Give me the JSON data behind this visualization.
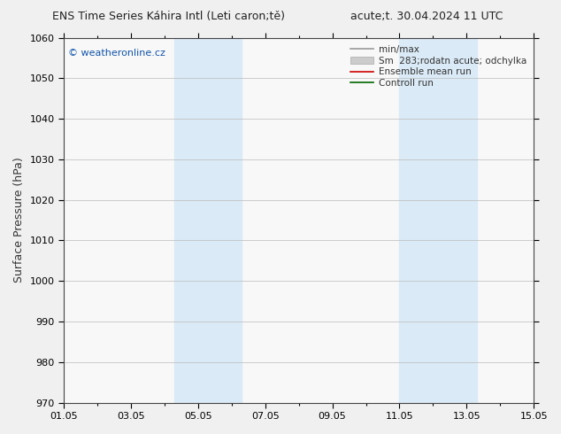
{
  "title_left": "ENS Time Series Káhira Intl (Leti caron;tě)",
  "title_right": "acute;t. 30.04.2024 11 UTC",
  "ylabel": "Surface Pressure (hPa)",
  "ylim": [
    970,
    1060
  ],
  "yticks": [
    970,
    980,
    990,
    1000,
    1010,
    1020,
    1030,
    1040,
    1050,
    1060
  ],
  "xlim_start": 0,
  "xlim_end": 14,
  "xtick_labels": [
    "01.05",
    "03.05",
    "05.05",
    "07.05",
    "09.05",
    "11.05",
    "13.05",
    "15.05"
  ],
  "xtick_positions": [
    0,
    2,
    4,
    6,
    8,
    10,
    12,
    14
  ],
  "shaded_regions": [
    {
      "xmin": 3.3,
      "xmax": 4.0,
      "color": "#daeaf6"
    },
    {
      "xmin": 4.0,
      "xmax": 5.3,
      "color": "#daeaf6"
    },
    {
      "xmin": 10.0,
      "xmax": 10.7,
      "color": "#daeaf6"
    },
    {
      "xmin": 10.7,
      "xmax": 12.3,
      "color": "#daeaf6"
    }
  ],
  "watermark": "© weatheronline.cz",
  "legend_entries": [
    {
      "label": "min/max",
      "color": "#999999",
      "lw": 1.2,
      "type": "line"
    },
    {
      "label": "Sm  283;rodatn acute; odchylka",
      "color": "#cccccc",
      "lw": 6,
      "type": "patch"
    },
    {
      "label": "Ensemble mean run",
      "color": "#cc0000",
      "lw": 1.2,
      "type": "line"
    },
    {
      "label": "Controll run",
      "color": "#006600",
      "lw": 1.2,
      "type": "line"
    }
  ],
  "bg_color": "#f0f0f0",
  "plot_bg_color": "#f8f8f8",
  "grid_color": "#bbbbbb",
  "title_fontsize": 9,
  "tick_fontsize": 8,
  "ylabel_fontsize": 9,
  "watermark_color": "#1155aa"
}
